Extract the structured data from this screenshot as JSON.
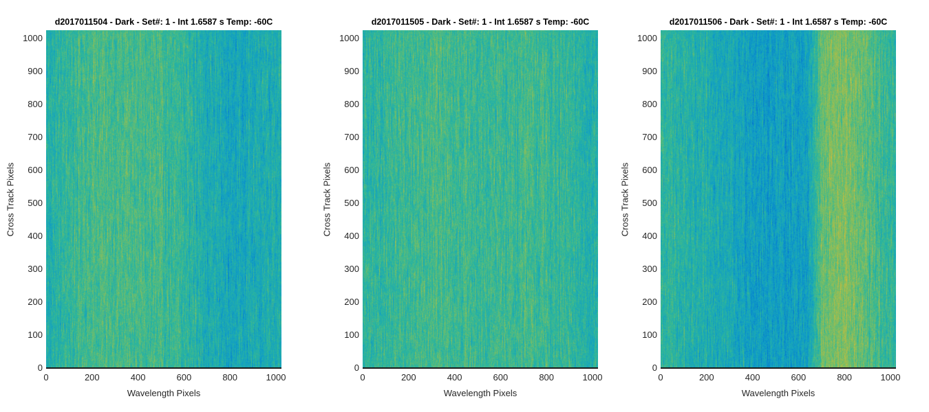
{
  "chart_data": [
    {
      "type": "heatmap",
      "title": "d2017011504 - Dark - Set#: 1 - Int 1.6587 s Temp: -60C",
      "xlabel": "Wavelength Pixels",
      "ylabel": "Cross Track Pixels",
      "xlim": [
        0,
        1024
      ],
      "ylim": [
        0,
        1024
      ],
      "xticks": [
        "0",
        "200",
        "400",
        "600",
        "800",
        "1000"
      ],
      "yticks": [
        "0",
        "100",
        "200",
        "300",
        "400",
        "500",
        "600",
        "700",
        "800",
        "900",
        "1000"
      ],
      "colormap": "parula",
      "base_level": 0.52,
      "column_profile": [
        [
          0,
          0.5
        ],
        [
          200,
          0.6
        ],
        [
          500,
          0.58
        ],
        [
          800,
          0.44
        ],
        [
          1024,
          0.5
        ]
      ]
    },
    {
      "type": "heatmap",
      "title": "d2017011505 - Dark - Set#: 1 - Int 1.6587 s Temp: -60C",
      "xlabel": "Wavelength Pixels",
      "ylabel": "Cross Track Pixels",
      "xlim": [
        0,
        1024
      ],
      "ylim": [
        0,
        1024
      ],
      "xticks": [
        "0",
        "200",
        "400",
        "600",
        "800",
        "1000"
      ],
      "yticks": [
        "0",
        "100",
        "200",
        "300",
        "400",
        "500",
        "600",
        "700",
        "800",
        "900",
        "1000"
      ],
      "colormap": "parula",
      "base_level": 0.55,
      "column_profile": [
        [
          0,
          0.52
        ],
        [
          300,
          0.6
        ],
        [
          500,
          0.56
        ],
        [
          750,
          0.58
        ],
        [
          1024,
          0.5
        ]
      ]
    },
    {
      "type": "heatmap",
      "title": "d2017011506 - Dark - Set#: 1 - Int 1.6587 s Temp: -60C",
      "xlabel": "Wavelength Pixels",
      "ylabel": "Cross Track Pixels",
      "xlim": [
        0,
        1024
      ],
      "ylim": [
        0,
        1024
      ],
      "xticks": [
        "0",
        "200",
        "400",
        "600",
        "800",
        "1000"
      ],
      "yticks": [
        "0",
        "100",
        "200",
        "300",
        "400",
        "500",
        "600",
        "700",
        "800",
        "900",
        "1000"
      ],
      "colormap": "parula",
      "base_level": 0.5,
      "column_profile": [
        [
          0,
          0.54
        ],
        [
          200,
          0.48
        ],
        [
          450,
          0.4
        ],
        [
          640,
          0.42
        ],
        [
          700,
          0.66
        ],
        [
          800,
          0.7
        ],
        [
          900,
          0.62
        ],
        [
          1024,
          0.52
        ]
      ]
    }
  ]
}
